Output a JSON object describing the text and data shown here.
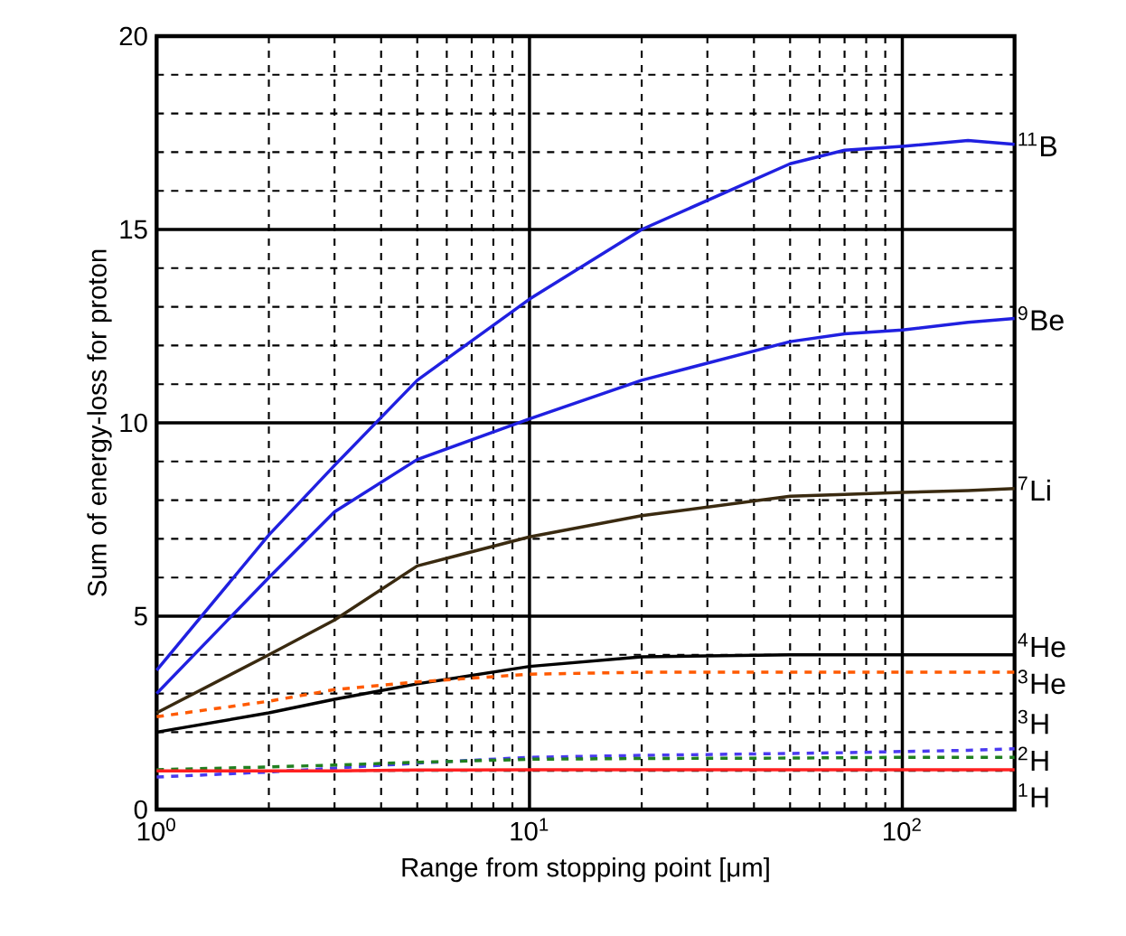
{
  "chart_data": {
    "type": "line",
    "xlabel": "Range from stopping point [μm]",
    "ylabel": "Sum of energy-loss for proton",
    "log": "x",
    "grid": true,
    "marker": "none",
    "xlim": [
      1,
      200
    ],
    "ylim": [
      0,
      20
    ],
    "xticks": [
      {
        "value": 1,
        "label": "10$^{0}$"
      },
      {
        "value": 10,
        "label": "10$^{1}$"
      },
      {
        "value": 100,
        "label": "10$^{2}$"
      }
    ],
    "yticks": [
      0,
      5,
      10,
      15,
      20
    ],
    "x": [
      1,
      2,
      3,
      5,
      10,
      20,
      50,
      70,
      100,
      150,
      200
    ],
    "series": [
      {
        "name": "$^{11}$B",
        "color": "#2020e0",
        "line_style": "solid",
        "values": [
          3.6,
          7.1,
          8.9,
          11.1,
          13.2,
          15.0,
          16.7,
          17.05,
          17.15,
          17.3,
          17.2
        ]
      },
      {
        "name": "$^{9}$Be",
        "color": "#2020e0",
        "line_style": "solid",
        "values": [
          3.0,
          6.0,
          7.7,
          9.05,
          10.1,
          11.1,
          12.1,
          12.3,
          12.4,
          12.6,
          12.7
        ]
      },
      {
        "name": "$^{7}$Li",
        "color": "#3a2a10",
        "line_style": "solid",
        "values": [
          2.5,
          4.0,
          4.9,
          6.3,
          7.05,
          7.6,
          8.1,
          8.15,
          8.2,
          8.25,
          8.3
        ]
      },
      {
        "name": "$^{4}$He",
        "color": "#000000",
        "line_style": "solid",
        "values": [
          2.0,
          2.5,
          2.85,
          3.25,
          3.7,
          3.95,
          4.0,
          4.0,
          4.0,
          4.0,
          4.0
        ]
      },
      {
        "name": "$^{3}$He",
        "color": "#ff5a00",
        "line_style": "dashed",
        "values": [
          2.4,
          2.8,
          3.1,
          3.3,
          3.5,
          3.55,
          3.55,
          3.55,
          3.55,
          3.55,
          3.55
        ]
      },
      {
        "name": "$^{3}$H",
        "color": "#4a3af0",
        "line_style": "dashed",
        "values": [
          0.84,
          0.97,
          1.07,
          1.2,
          1.35,
          1.4,
          1.45,
          1.47,
          1.5,
          1.53,
          1.57
        ]
      },
      {
        "name": "$^{2}$H",
        "color": "#208020",
        "line_style": "dashed",
        "values": [
          1.03,
          1.1,
          1.15,
          1.22,
          1.3,
          1.32,
          1.33,
          1.34,
          1.35,
          1.35,
          1.35
        ]
      },
      {
        "name": "$^{1}$H",
        "color": "#ff2020",
        "line_style": "solid",
        "values": [
          1.0,
          1.0,
          1.0,
          1.02,
          1.03,
          1.03,
          1.03,
          1.03,
          1.03,
          1.03,
          1.03
        ]
      }
    ]
  }
}
